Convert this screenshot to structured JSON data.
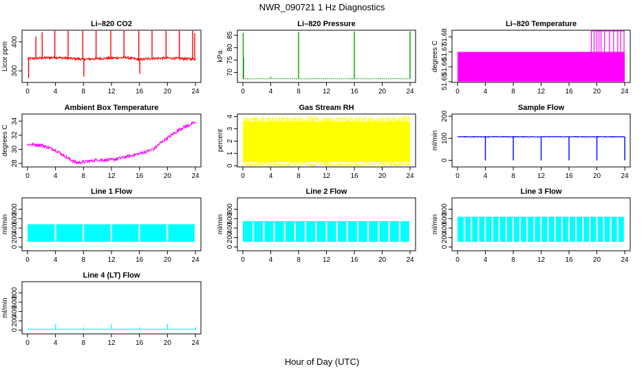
{
  "figure": {
    "title": "NWR_090721  1 Hz Diagnostics",
    "xlabel": "Hour of Day (UTC)"
  },
  "chart_data": [
    {
      "type": "line",
      "title": "Li–820 CO2",
      "ylabel": "Licor ppm",
      "color": "#ff0000",
      "xlim": [
        0,
        24
      ],
      "ylim": [
        260,
        440
      ],
      "xticks": [
        "0",
        "4",
        "8",
        "12",
        "16",
        "20",
        "24"
      ],
      "yticks": [
        "300",
        "400"
      ],
      "base": {
        "x": [
          0,
          2,
          4,
          6,
          8,
          10,
          12,
          14,
          16,
          18,
          20,
          22,
          24
        ],
        "y": [
          342,
          344,
          346,
          343,
          340,
          342,
          344,
          346,
          339,
          343,
          344,
          342,
          340
        ]
      },
      "noise": 8,
      "spikes": [
        {
          "x": 0.15,
          "y": 275
        },
        {
          "x": 1.2,
          "y": 418
        },
        {
          "x": 2.1,
          "y": 433
        },
        {
          "x": 3.9,
          "y": 438
        },
        {
          "x": 5.8,
          "y": 438
        },
        {
          "x": 7.9,
          "y": 438
        },
        {
          "x": 8.05,
          "y": 280
        },
        {
          "x": 9.8,
          "y": 438
        },
        {
          "x": 11.9,
          "y": 438
        },
        {
          "x": 13.8,
          "y": 438
        },
        {
          "x": 15.9,
          "y": 438
        },
        {
          "x": 16.05,
          "y": 290
        },
        {
          "x": 17.8,
          "y": 438
        },
        {
          "x": 19.8,
          "y": 438
        },
        {
          "x": 21.7,
          "y": 438
        },
        {
          "x": 23.6,
          "y": 438
        },
        {
          "x": 23.9,
          "y": 430
        }
      ]
    },
    {
      "type": "line",
      "title": "Li–820 Pressure",
      "ylabel": "kPa",
      "color": "#00a000",
      "dotted": true,
      "xlim": [
        0,
        24
      ],
      "ylim": [
        66,
        87
      ],
      "xticks": [
        "0",
        "4",
        "8",
        "12",
        "16",
        "20",
        "24"
      ],
      "yticks": [
        "70",
        "75",
        "80",
        "85"
      ],
      "base": {
        "x": [
          0,
          24
        ],
        "y": [
          67.5,
          67.5
        ]
      },
      "noise": 0.15,
      "spikes": [
        {
          "x": 0.05,
          "y": 86
        },
        {
          "x": 0.1,
          "y": 76
        },
        {
          "x": 4,
          "y": 68.3
        },
        {
          "x": 8,
          "y": 86.2
        },
        {
          "x": 16,
          "y": 86.5
        },
        {
          "x": 24,
          "y": 86.5
        }
      ]
    },
    {
      "type": "area",
      "title": "Li–820 Temperature",
      "ylabel": "degrees C",
      "color": "#ff00ff",
      "xlim": [
        0,
        24
      ],
      "ylim": [
        51.6495,
        51.6845
      ],
      "xticks": [
        "0",
        "4",
        "8",
        "12",
        "16",
        "20",
        "24"
      ],
      "yticks": [
        "51.65",
        "51.66",
        "51.67",
        "51.68"
      ],
      "band": {
        "low": 51.65,
        "high": 51.67
      },
      "upper_spikes": {
        "x": [
          19.2,
          19.6,
          20.0,
          20.3,
          20.6,
          21.1,
          21.8,
          22.4,
          23.0,
          23.4,
          23.9
        ],
        "y": 51.684
      }
    },
    {
      "type": "line",
      "title": "Ambient Box Temperature",
      "ylabel": "degrees C",
      "color": "#ff00ff",
      "xlim": [
        0,
        24
      ],
      "ylim": [
        27.5,
        35
      ],
      "xticks": [
        "0",
        "4",
        "8",
        "12",
        "16",
        "20",
        "24"
      ],
      "yticks": [
        "28",
        "30",
        "32",
        "34"
      ],
      "base": {
        "x": [
          0,
          2,
          4,
          6,
          7,
          8,
          10,
          12,
          14,
          16,
          18,
          19,
          20,
          22,
          24
        ],
        "y": [
          30.7,
          30.6,
          29.9,
          28.6,
          28.1,
          28.2,
          28.5,
          28.5,
          28.9,
          29.4,
          30.0,
          30.9,
          31.6,
          33.0,
          33.8
        ]
      },
      "noise": 0.45
    },
    {
      "type": "area",
      "title": "Gas Stream RH",
      "ylabel": "percent",
      "color": "#ffff00",
      "xlim": [
        0,
        24
      ],
      "ylim": [
        -0.1,
        4.2
      ],
      "xticks": [
        "0",
        "4",
        "8",
        "12",
        "16",
        "20",
        "24"
      ],
      "yticks": [
        "0",
        "1",
        "2",
        "3",
        "4"
      ],
      "band": {
        "low": 0.3,
        "high": 3.6
      }
    },
    {
      "type": "line",
      "title": "Sample Flow",
      "ylabel": "ml/min",
      "color": "#0000ff",
      "xlim": [
        0,
        24
      ],
      "ylim": [
        -30,
        210
      ],
      "xticks": [
        "0",
        "4",
        "8",
        "12",
        "16",
        "20",
        "24"
      ],
      "yticks": [
        "0",
        "100",
        "200"
      ],
      "base": {
        "x": [
          0,
          24
        ],
        "y": [
          107,
          107
        ]
      },
      "noise": 3,
      "spikes": [
        {
          "x": 4,
          "y": 0
        },
        {
          "x": 8,
          "y": 0
        },
        {
          "x": 12,
          "y": 0
        },
        {
          "x": 16,
          "y": 0
        },
        {
          "x": 20,
          "y": 0
        },
        {
          "x": 24,
          "y": 0
        }
      ]
    },
    {
      "type": "area",
      "title": "Line 1 Flow",
      "ylabel": "ml/min",
      "color": "#00ffff",
      "xlim": [
        0,
        24
      ],
      "ylim": [
        -80,
        1040
      ],
      "xticks": [
        "0",
        "4",
        "8",
        "12",
        "16",
        "20",
        "24"
      ],
      "yticks": [
        "0",
        "200",
        "400",
        "600",
        "800"
      ],
      "band": {
        "low": 110,
        "high": 480
      },
      "gaps": [
        4,
        8,
        12,
        16,
        20,
        24
      ]
    },
    {
      "type": "area",
      "title": "Line 2 Flow",
      "ylabel": "ml/min",
      "color": "#00ffff",
      "xlim": [
        0,
        24
      ],
      "ylim": [
        -80,
        1040
      ],
      "xticks": [
        "0",
        "4",
        "8",
        "12",
        "16",
        "20",
        "24"
      ],
      "yticks": [
        "0",
        "200",
        "400",
        "600",
        "800"
      ],
      "band": {
        "low": 110,
        "high": 545
      },
      "gaps": [
        1.5,
        3,
        4.5,
        6,
        7.5,
        9,
        10.5,
        12,
        13.5,
        15,
        16.5,
        18,
        19.5,
        21,
        22.5,
        24
      ]
    },
    {
      "type": "area",
      "title": "Line 3 Flow",
      "ylabel": "ml/min",
      "color": "#00ffff",
      "xlim": [
        0,
        24
      ],
      "ylim": [
        -80,
        1040
      ],
      "xticks": [
        "0",
        "4",
        "8",
        "12",
        "16",
        "20",
        "24"
      ],
      "yticks": [
        "0",
        "200",
        "400",
        "600",
        "800"
      ],
      "band": {
        "low": 110,
        "high": 640
      },
      "gaps": [
        1,
        2,
        3,
        4,
        5,
        6,
        7,
        8,
        9,
        10,
        11,
        12,
        13,
        14,
        15,
        16,
        17,
        18,
        19,
        20,
        21,
        22,
        23,
        24
      ]
    },
    {
      "type": "line",
      "title": "Line 4 (LT) Flow",
      "ylabel": "ml/min",
      "color": "#00ffff",
      "xlim": [
        0,
        24
      ],
      "ylim": [
        -80,
        1040
      ],
      "xticks": [
        "0",
        "4",
        "8",
        "12",
        "16",
        "20",
        "24"
      ],
      "yticks": [
        "0",
        "200",
        "400",
        "600",
        "800"
      ],
      "base": {
        "x": [
          0,
          24
        ],
        "y": [
          20,
          20
        ]
      },
      "noise": 3,
      "spikes": [
        {
          "x": 4,
          "y": 130
        },
        {
          "x": 8,
          "y": 60
        },
        {
          "x": 12,
          "y": 130
        },
        {
          "x": 16,
          "y": 60
        },
        {
          "x": 20,
          "y": 130
        },
        {
          "x": 24,
          "y": 60
        }
      ]
    }
  ]
}
